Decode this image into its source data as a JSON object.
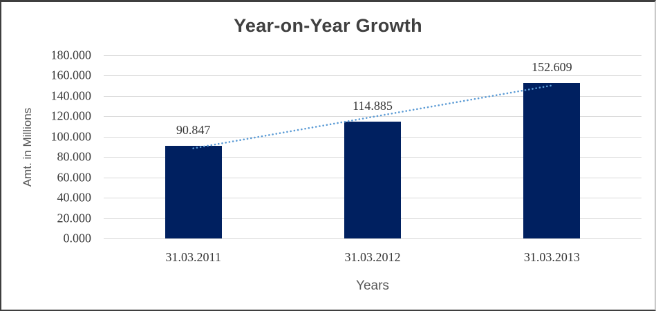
{
  "chart_data": {
    "type": "bar",
    "title": "Year-on-Year Growth",
    "categories": [
      "31.03.2011",
      "31.03.2012",
      "31.03.2013"
    ],
    "values": [
      90.847,
      114.885,
      152.609
    ],
    "data_labels": [
      "90.847",
      "114.885",
      "152.609"
    ],
    "xlabel": "Years",
    "ylabel": "Amt. in Millions",
    "ylim": [
      0,
      180
    ],
    "ytick_values": [
      180,
      160,
      140,
      120,
      100,
      80,
      60,
      40,
      20,
      0
    ],
    "ytick_labels": [
      "180.000",
      "160.000",
      "140.000",
      "120.000",
      "100.000",
      "80.000",
      "60.000",
      "40.000",
      "20.000",
      "0.000"
    ],
    "grid": true,
    "legend_position": "none",
    "trendline": {
      "type": "linear",
      "style": "dotted"
    },
    "colors": {
      "bar": "#002060",
      "trendline": "#5B9BD5",
      "gridline": "#D9D9D9",
      "title_text": "#404040",
      "tick_text": "#383838",
      "axis_title_text": "#595959"
    }
  }
}
